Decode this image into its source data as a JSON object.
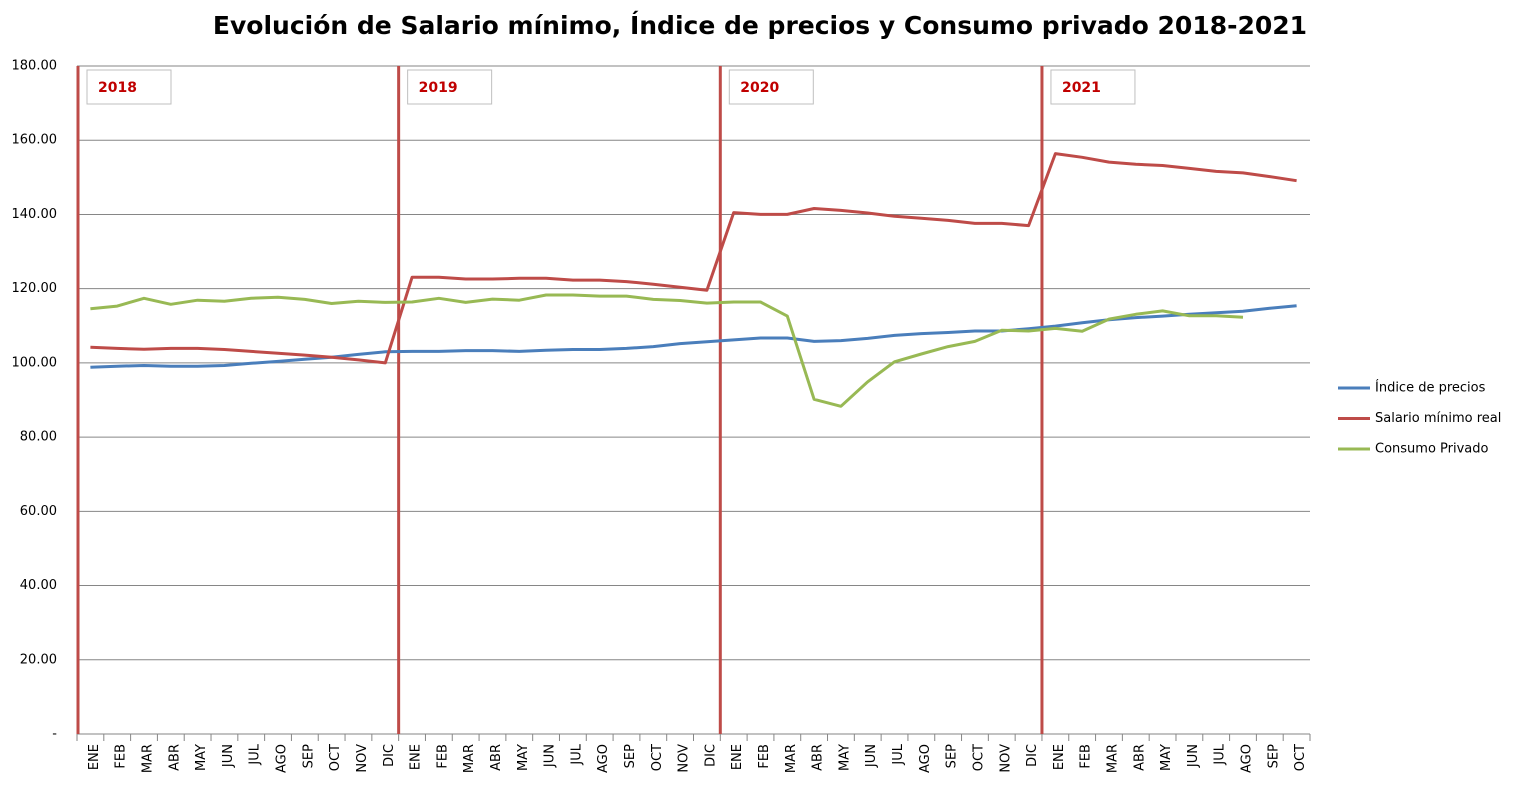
{
  "chart_data": {
    "type": "line",
    "title": "Evolución de Salario mínimo, Índice de precios y Consumo privado 2018-2021",
    "annotations": [
      "2018",
      "2019",
      "2020",
      "2021"
    ],
    "categories": [
      "ENE",
      "FEB",
      "MAR",
      "ABR",
      "MAY",
      "JUN",
      "JUL",
      "AGO",
      "SEP",
      "OCT",
      "NOV",
      "DIC",
      "ENE",
      "FEB",
      "MAR",
      "ABR",
      "MAY",
      "JUN",
      "JUL",
      "AGO",
      "SEP",
      "OCT",
      "NOV",
      "DIC",
      "ENE",
      "FEB",
      "MAR",
      "ABR",
      "MAY",
      "JUN",
      "JUL",
      "AGO",
      "SEP",
      "OCT",
      "NOV",
      "DIC",
      "ENE",
      "FEB",
      "MAR",
      "ABR",
      "MAY",
      "JUN",
      "JUL",
      "AGO",
      "SEP",
      "OCT"
    ],
    "series": [
      {
        "name": "Índice de precios",
        "color": "#4a7ebb",
        "values": [
          98.8,
          99.1,
          99.3,
          99.1,
          99.1,
          99.3,
          99.9,
          100.4,
          101.0,
          101.5,
          102.3,
          103.0,
          103.1,
          103.1,
          103.3,
          103.3,
          103.1,
          103.4,
          103.6,
          103.6,
          103.9,
          104.4,
          105.2,
          105.7,
          106.2,
          106.7,
          106.7,
          105.8,
          106.0,
          106.6,
          107.4,
          107.9,
          108.2,
          108.6,
          108.6,
          109.2,
          109.9,
          110.8,
          111.6,
          112.2,
          112.6,
          113.1,
          113.5,
          113.9,
          114.7,
          115.4
        ]
      },
      {
        "name": "Salario mínimo real",
        "color": "#be4b48",
        "values": [
          104.2,
          103.9,
          103.7,
          103.9,
          103.9,
          103.6,
          103.1,
          102.6,
          102.1,
          101.5,
          100.8,
          100.0,
          123.1,
          123.1,
          122.6,
          122.6,
          122.8,
          122.8,
          122.3,
          122.3,
          121.9,
          121.2,
          120.4,
          119.6,
          140.5,
          140.0,
          140.0,
          141.6,
          141.1,
          140.4,
          139.5,
          139.0,
          138.4,
          137.6,
          137.6,
          137.0,
          156.4,
          155.4,
          154.1,
          153.5,
          153.2,
          152.4,
          151.6,
          151.2,
          150.2,
          149.1
        ]
      },
      {
        "name": "Consumo Privado",
        "color": "#98b954",
        "values": [
          114.6,
          115.3,
          117.4,
          115.8,
          116.9,
          116.6,
          117.4,
          117.7,
          117.1,
          116.0,
          116.6,
          116.3,
          116.4,
          117.4,
          116.3,
          117.2,
          116.9,
          118.3,
          118.3,
          118.0,
          118.0,
          117.1,
          116.8,
          116.1,
          116.4,
          116.4,
          112.6,
          90.2,
          88.3,
          94.9,
          100.3,
          102.4,
          104.4,
          105.8,
          108.8,
          108.6,
          109.3,
          108.5,
          111.8,
          113.1,
          114.0,
          112.7,
          112.7,
          112.3,
          null,
          null
        ]
      }
    ],
    "ylim": [
      0,
      180
    ],
    "yticks": [
      {
        "value": 0,
        "label": "-"
      },
      {
        "value": 20,
        "label": "20.00"
      },
      {
        "value": 40,
        "label": "40.00"
      },
      {
        "value": 60,
        "label": "60.00"
      },
      {
        "value": 80,
        "label": "80.00"
      },
      {
        "value": 100,
        "label": "100.00"
      },
      {
        "value": 120,
        "label": "120.00"
      },
      {
        "value": 140,
        "label": "140.00"
      },
      {
        "value": 160,
        "label": "160.00"
      },
      {
        "value": 180,
        "label": "180.00"
      }
    ],
    "grid": true,
    "legend": "right",
    "marker_color": "#be4b48"
  }
}
